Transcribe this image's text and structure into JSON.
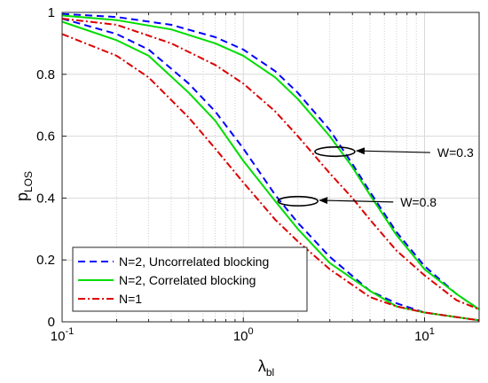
{
  "chart_data": {
    "type": "line",
    "xlabel": "λ",
    "xlabel_sub": "bl",
    "ylabel": "p",
    "ylabel_sub": "LOS",
    "x_scale": "log",
    "xlim": [
      0.1,
      20
    ],
    "ylim": [
      0,
      1
    ],
    "x_ticks": [
      {
        "value": 0.1,
        "base": "10",
        "exp": "-1"
      },
      {
        "value": 1,
        "base": "10",
        "exp": "0"
      },
      {
        "value": 10,
        "base": "10",
        "exp": "1"
      }
    ],
    "y_ticks": [
      {
        "value": 0,
        "label": "0"
      },
      {
        "value": 0.2,
        "label": "0.2"
      },
      {
        "value": 0.4,
        "label": "0.4"
      },
      {
        "value": 0.6,
        "label": "0.6"
      },
      {
        "value": 0.8,
        "label": "0.8"
      },
      {
        "value": 1,
        "label": "1"
      }
    ],
    "grid": true,
    "legend_position": "bottom-left",
    "series": [
      {
        "name": "N=2, Uncorrelated blocking",
        "color": "#0000ff",
        "dash": "dashed",
        "curves": [
          {
            "group": "W=0.3",
            "points": [
              [
                0.1,
                0.995
              ],
              [
                0.2,
                0.985
              ],
              [
                0.4,
                0.96
              ],
              [
                0.7,
                0.92
              ],
              [
                1,
                0.88
              ],
              [
                1.5,
                0.81
              ],
              [
                2,
                0.74
              ],
              [
                3,
                0.62
              ],
              [
                4,
                0.51
              ],
              [
                5,
                0.42
              ],
              [
                7,
                0.29
              ],
              [
                10,
                0.18
              ],
              [
                15,
                0.09
              ],
              [
                20,
                0.04
              ]
            ]
          },
          {
            "group": "W=0.8",
            "points": [
              [
                0.1,
                0.98
              ],
              [
                0.2,
                0.93
              ],
              [
                0.3,
                0.88
              ],
              [
                0.5,
                0.77
              ],
              [
                0.7,
                0.68
              ],
              [
                1,
                0.56
              ],
              [
                1.5,
                0.41
              ],
              [
                2,
                0.32
              ],
              [
                3,
                0.21
              ],
              [
                5,
                0.1
              ],
              [
                7,
                0.06
              ],
              [
                10,
                0.03
              ],
              [
                20,
                0.005
              ]
            ]
          }
        ]
      },
      {
        "name": "N=2, Correlated blocking",
        "color": "#00dd00",
        "dash": "solid",
        "curves": [
          {
            "group": "W=0.3",
            "points": [
              [
                0.1,
                0.99
              ],
              [
                0.2,
                0.975
              ],
              [
                0.4,
                0.945
              ],
              [
                0.7,
                0.9
              ],
              [
                1,
                0.86
              ],
              [
                1.5,
                0.79
              ],
              [
                2,
                0.72
              ],
              [
                3,
                0.6
              ],
              [
                4,
                0.5
              ],
              [
                5,
                0.41
              ],
              [
                7,
                0.28
              ],
              [
                10,
                0.17
              ],
              [
                15,
                0.09
              ],
              [
                20,
                0.04
              ]
            ]
          },
          {
            "group": "W=0.8",
            "points": [
              [
                0.1,
                0.97
              ],
              [
                0.2,
                0.91
              ],
              [
                0.3,
                0.86
              ],
              [
                0.5,
                0.74
              ],
              [
                0.7,
                0.65
              ],
              [
                1,
                0.52
              ],
              [
                1.5,
                0.39
              ],
              [
                2,
                0.3
              ],
              [
                3,
                0.19
              ],
              [
                5,
                0.1
              ],
              [
                7,
                0.05
              ],
              [
                10,
                0.03
              ],
              [
                20,
                0.005
              ]
            ]
          }
        ]
      },
      {
        "name": "N=1",
        "color": "#dd0000",
        "dash": "dashdot",
        "curves": [
          {
            "group": "W=0.3",
            "points": [
              [
                0.1,
                0.98
              ],
              [
                0.2,
                0.96
              ],
              [
                0.4,
                0.9
              ],
              [
                0.7,
                0.83
              ],
              [
                1,
                0.77
              ],
              [
                1.5,
                0.68
              ],
              [
                2,
                0.6
              ],
              [
                3,
                0.48
              ],
              [
                4,
                0.4
              ],
              [
                5,
                0.33
              ],
              [
                7,
                0.23
              ],
              [
                10,
                0.15
              ],
              [
                15,
                0.07
              ],
              [
                20,
                0.04
              ]
            ]
          },
          {
            "group": "W=0.8",
            "points": [
              [
                0.1,
                0.93
              ],
              [
                0.2,
                0.86
              ],
              [
                0.3,
                0.79
              ],
              [
                0.5,
                0.66
              ],
              [
                0.7,
                0.56
              ],
              [
                1,
                0.45
              ],
              [
                1.5,
                0.33
              ],
              [
                2,
                0.26
              ],
              [
                3,
                0.17
              ],
              [
                5,
                0.08
              ],
              [
                7,
                0.05
              ],
              [
                10,
                0.03
              ],
              [
                20,
                0.005
              ]
            ]
          }
        ]
      }
    ],
    "annotations": [
      {
        "text": "W=0.3",
        "target": [
          3.2,
          0.55
        ],
        "ellipse_rx_dec": 0.11,
        "ellipse_ry": 0.015
      },
      {
        "text": "W=0.8",
        "target": [
          2.0,
          0.39
        ],
        "ellipse_rx_dec": 0.11,
        "ellipse_ry": 0.015
      }
    ]
  }
}
